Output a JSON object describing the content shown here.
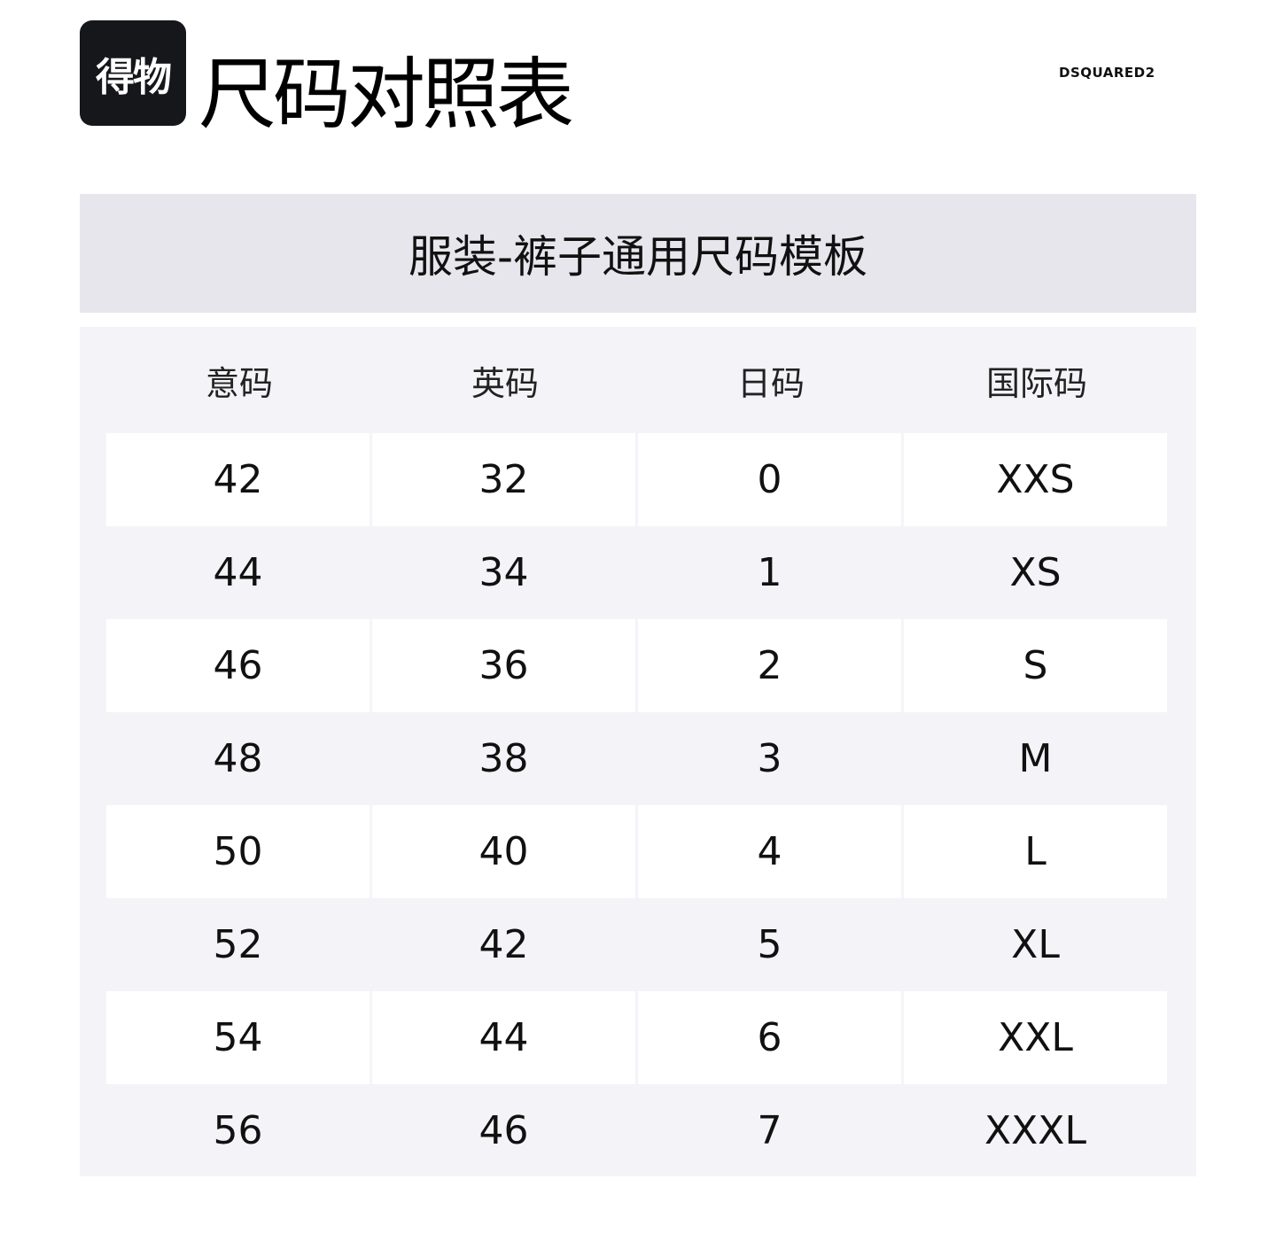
{
  "logo": {
    "text": "得物"
  },
  "title": "尺码对照表",
  "brand": "DSQUARED2",
  "subtitle": "服装-裤子通用尺码模板",
  "table": {
    "headers": [
      "意码",
      "英码",
      "日码",
      "国际码"
    ],
    "rows": [
      [
        "42",
        "32",
        "0",
        "XXS"
      ],
      [
        "44",
        "34",
        "1",
        "XS"
      ],
      [
        "46",
        "36",
        "2",
        "S"
      ],
      [
        "48",
        "38",
        "3",
        "M"
      ],
      [
        "50",
        "40",
        "4",
        "L"
      ],
      [
        "52",
        "42",
        "5",
        "XL"
      ],
      [
        "54",
        "44",
        "6",
        "XXL"
      ],
      [
        "56",
        "46",
        "7",
        "XXXL"
      ]
    ]
  }
}
